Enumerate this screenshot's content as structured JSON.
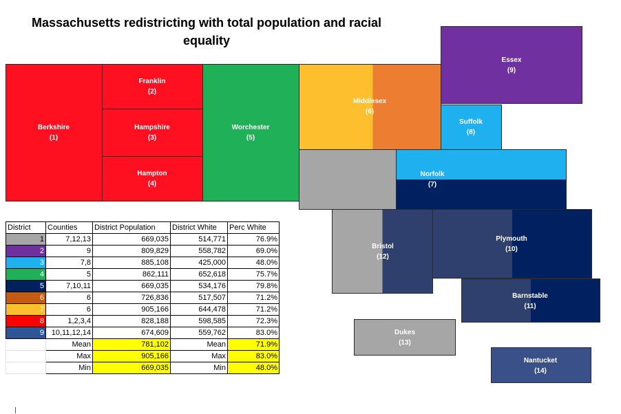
{
  "title": "Massachusetts redistricting with total population and racial equality",
  "colors": {
    "d1": "#a6a6a6",
    "d2": "#7030a0",
    "d3": "#1fb0f0",
    "d4": "#21b05a",
    "d5": "#002060",
    "d6": "#c55a11",
    "d7": "#fdbf2d",
    "d8": "#ff0000",
    "d9": "#2f5597",
    "red": "#ff1020",
    "green": "#20b058",
    "orange": "#ed7d31"
  },
  "counties": {
    "berkshire": {
      "name": "Berkshire",
      "num": "(1)"
    },
    "franklin": {
      "name": "Franklin",
      "num": "(2)"
    },
    "hampshire": {
      "name": "Hampshire",
      "num": "(3)"
    },
    "hampton": {
      "name": "Hampton",
      "num": "(4)"
    },
    "worchester": {
      "name": "Worchester",
      "num": "(5)"
    },
    "middlesex": {
      "name": "Middlesex",
      "num": "(6)"
    },
    "suffolk": {
      "name": "Suffolk",
      "num": "(8)"
    },
    "essex": {
      "name": "Essex",
      "num": "(9)"
    },
    "norfolk": {
      "name": "Norfolk",
      "num": "(7)"
    },
    "bristol": {
      "name": "Bristol",
      "num": "(12)"
    },
    "plymouth": {
      "name": "Plymouth",
      "num": "(10)"
    },
    "barnstable": {
      "name": "Barnstable",
      "num": "(11)"
    },
    "dukes": {
      "name": "Dukes",
      "num": "(13)"
    },
    "nantucket": {
      "name": "Nantucket",
      "num": "(14)"
    }
  },
  "table": {
    "headers": [
      "District",
      "Counties",
      "District Population",
      "District White",
      "Perc White"
    ],
    "rows": [
      {
        "district": "1",
        "counties": "7,12,13",
        "population": "669,035",
        "white": "514,771",
        "perc": "76.9%"
      },
      {
        "district": "2",
        "counties": "9",
        "population": "809,829",
        "white": "558,782",
        "perc": "69.0%"
      },
      {
        "district": "3",
        "counties": "7,8",
        "population": "885,108",
        "white": "425,000",
        "perc": "48.0%"
      },
      {
        "district": "4",
        "counties": "5",
        "population": "862,111",
        "white": "652,618",
        "perc": "75.7%"
      },
      {
        "district": "5",
        "counties": "7,10,11",
        "population": "669,035",
        "white": "534,176",
        "perc": "79.8%"
      },
      {
        "district": "6",
        "counties": "6",
        "population": "726,836",
        "white": "517,507",
        "perc": "71.2%"
      },
      {
        "district": "7",
        "counties": "6",
        "population": "905,166",
        "white": "644,478",
        "perc": "71.2%"
      },
      {
        "district": "8",
        "counties": "1,2,3,4",
        "population": "828,188",
        "white": "598,585",
        "perc": "72.3%"
      },
      {
        "district": "9",
        "counties": "10,11,12,14",
        "population": "674,609",
        "white": "559,762",
        "perc": "83.0%"
      }
    ],
    "summary": [
      {
        "label": "Mean",
        "population": "781,102",
        "label2": "Mean",
        "perc": "71.9%"
      },
      {
        "label": "Max",
        "population": "905,166",
        "label2": "Max",
        "perc": "83.0%"
      },
      {
        "label": "Min",
        "population": "669,035",
        "label2": "Min",
        "perc": "48.0%"
      }
    ]
  }
}
